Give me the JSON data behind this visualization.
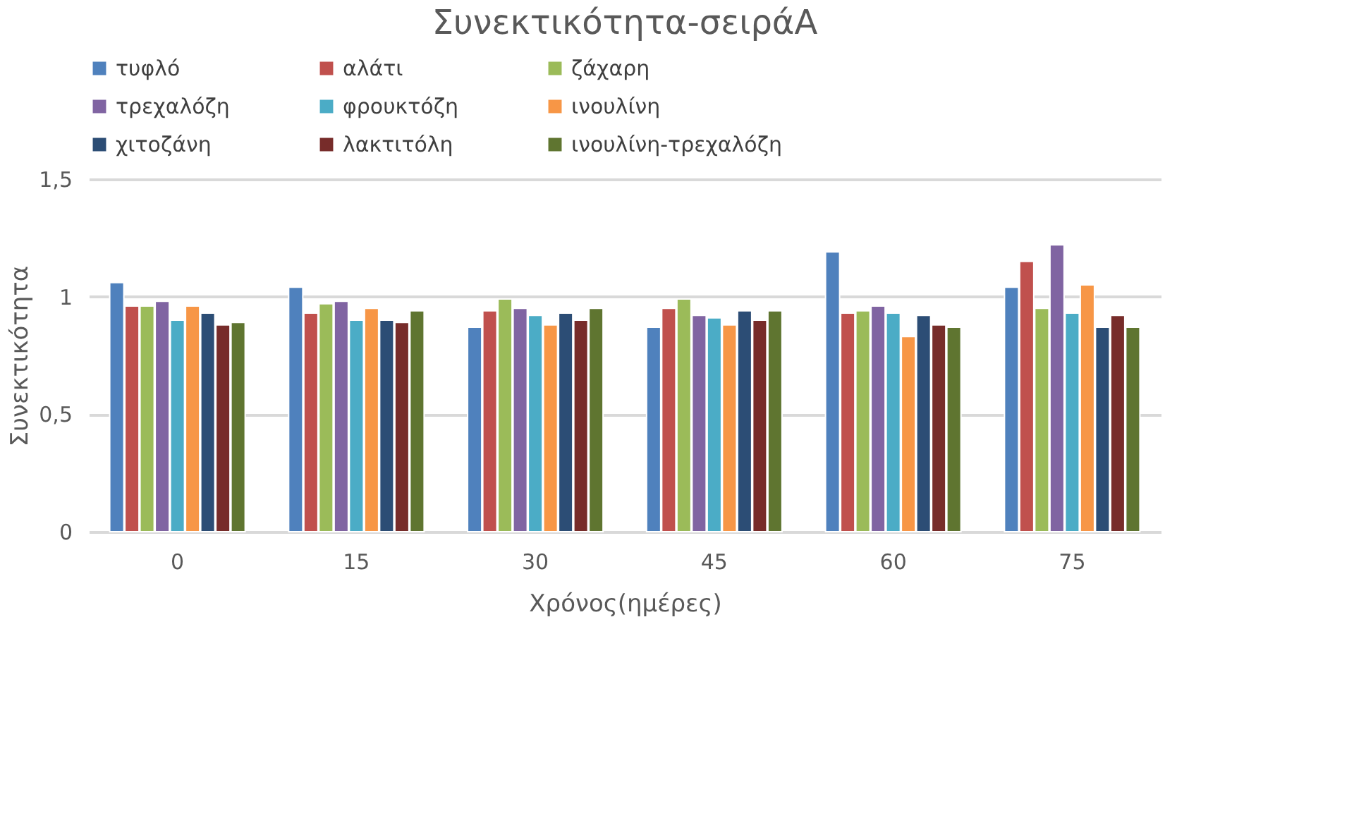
{
  "chart_data": {
    "type": "bar",
    "title": "Συνεκτικότητα-σειράΑ",
    "xlabel": "Χρόνος(ημέρες)",
    "ylabel": "Συνεκτικότητα",
    "categories": [
      "0",
      "15",
      "30",
      "45",
      "60",
      "75"
    ],
    "series": [
      {
        "name": "τυφλό",
        "color": "#4f81bd",
        "values": [
          1.06,
          1.04,
          0.87,
          0.87,
          1.19,
          1.04
        ]
      },
      {
        "name": "αλάτι",
        "color": "#c0504d",
        "values": [
          0.96,
          0.93,
          0.94,
          0.95,
          0.93,
          1.15
        ]
      },
      {
        "name": "ζάχαρη",
        "color": "#9bbb59",
        "values": [
          0.96,
          0.97,
          0.99,
          0.99,
          0.94,
          0.95
        ]
      },
      {
        "name": "τρεχαλόζη",
        "color": "#8064a2",
        "values": [
          0.98,
          0.98,
          0.95,
          0.92,
          0.96,
          1.22
        ]
      },
      {
        "name": "φρουκτόζη",
        "color": "#4bacc6",
        "values": [
          0.9,
          0.9,
          0.92,
          0.91,
          0.93,
          0.93
        ]
      },
      {
        "name": "ινουλίνη",
        "color": "#f79646",
        "values": [
          0.96,
          0.95,
          0.88,
          0.88,
          0.83,
          1.05
        ]
      },
      {
        "name": "χιτοζάνη",
        "color": "#2c4d75",
        "values": [
          0.93,
          0.9,
          0.93,
          0.94,
          0.92,
          0.87
        ]
      },
      {
        "name": "λακτιτόλη",
        "color": "#772c2a",
        "values": [
          0.88,
          0.89,
          0.9,
          0.9,
          0.88,
          0.92
        ]
      },
      {
        "name": "ινουλίνη-τρεχαλόζη",
        "color": "#5f7530",
        "values": [
          0.89,
          0.94,
          0.95,
          0.94,
          0.87,
          0.87
        ]
      }
    ],
    "ylim": [
      0,
      1.5
    ],
    "yticks": [
      0,
      {
        "value": 0.5,
        "label": "0,5"
      },
      1,
      {
        "value": 1.5,
        "label": "1,5"
      }
    ],
    "grid": "y",
    "legend": "top"
  }
}
